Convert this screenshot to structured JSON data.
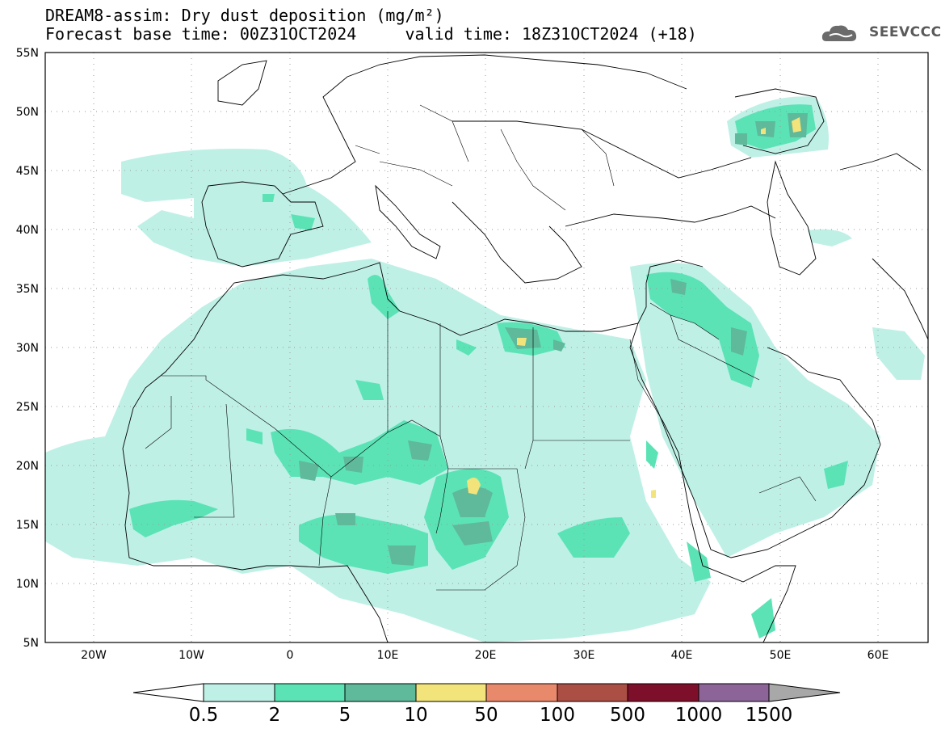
{
  "title": {
    "line1": "DREAM8-assim: Dry dust deposition (mg/m²)",
    "line2": "Forecast base time: 00Z31OCT2024     valid time: 18Z31OCT2024 (+18)"
  },
  "logo": {
    "text": "SEEVCCC",
    "icon": "cloud-icon"
  },
  "map": {
    "type": "contour-map",
    "lon_range": [
      -25,
      65
    ],
    "lat_range": [
      5,
      55
    ],
    "lon_ticks": [
      {
        "value": -20,
        "label": "20W"
      },
      {
        "value": -10,
        "label": "10W"
      },
      {
        "value": 0,
        "label": "0"
      },
      {
        "value": 10,
        "label": "10E"
      },
      {
        "value": 20,
        "label": "20E"
      },
      {
        "value": 30,
        "label": "30E"
      },
      {
        "value": 40,
        "label": "40E"
      },
      {
        "value": 50,
        "label": "50E"
      },
      {
        "value": 60,
        "label": "60E"
      }
    ],
    "lat_ticks": [
      {
        "value": 5,
        "label": "5N"
      },
      {
        "value": 10,
        "label": "10N"
      },
      {
        "value": 15,
        "label": "15N"
      },
      {
        "value": 20,
        "label": "20N"
      },
      {
        "value": 25,
        "label": "25N"
      },
      {
        "value": 30,
        "label": "30N"
      },
      {
        "value": 35,
        "label": "35N"
      },
      {
        "value": 40,
        "label": "40N"
      },
      {
        "value": 45,
        "label": "45N"
      },
      {
        "value": 50,
        "label": "50N"
      },
      {
        "value": 55,
        "label": "55N"
      }
    ],
    "grid": "dotted"
  },
  "colorbar": {
    "labels": [
      "0.5",
      "2",
      "5",
      "10",
      "50",
      "100",
      "500",
      "1000",
      "1500"
    ],
    "colors": [
      "#bff0e6",
      "#5be3b6",
      "#5fb99b",
      "#f2e37a",
      "#e9896b",
      "#ab4e44",
      "#7e0f2a",
      "#8c6498"
    ],
    "under_color": "#ffffff",
    "over_color": "#a8a8a8"
  }
}
